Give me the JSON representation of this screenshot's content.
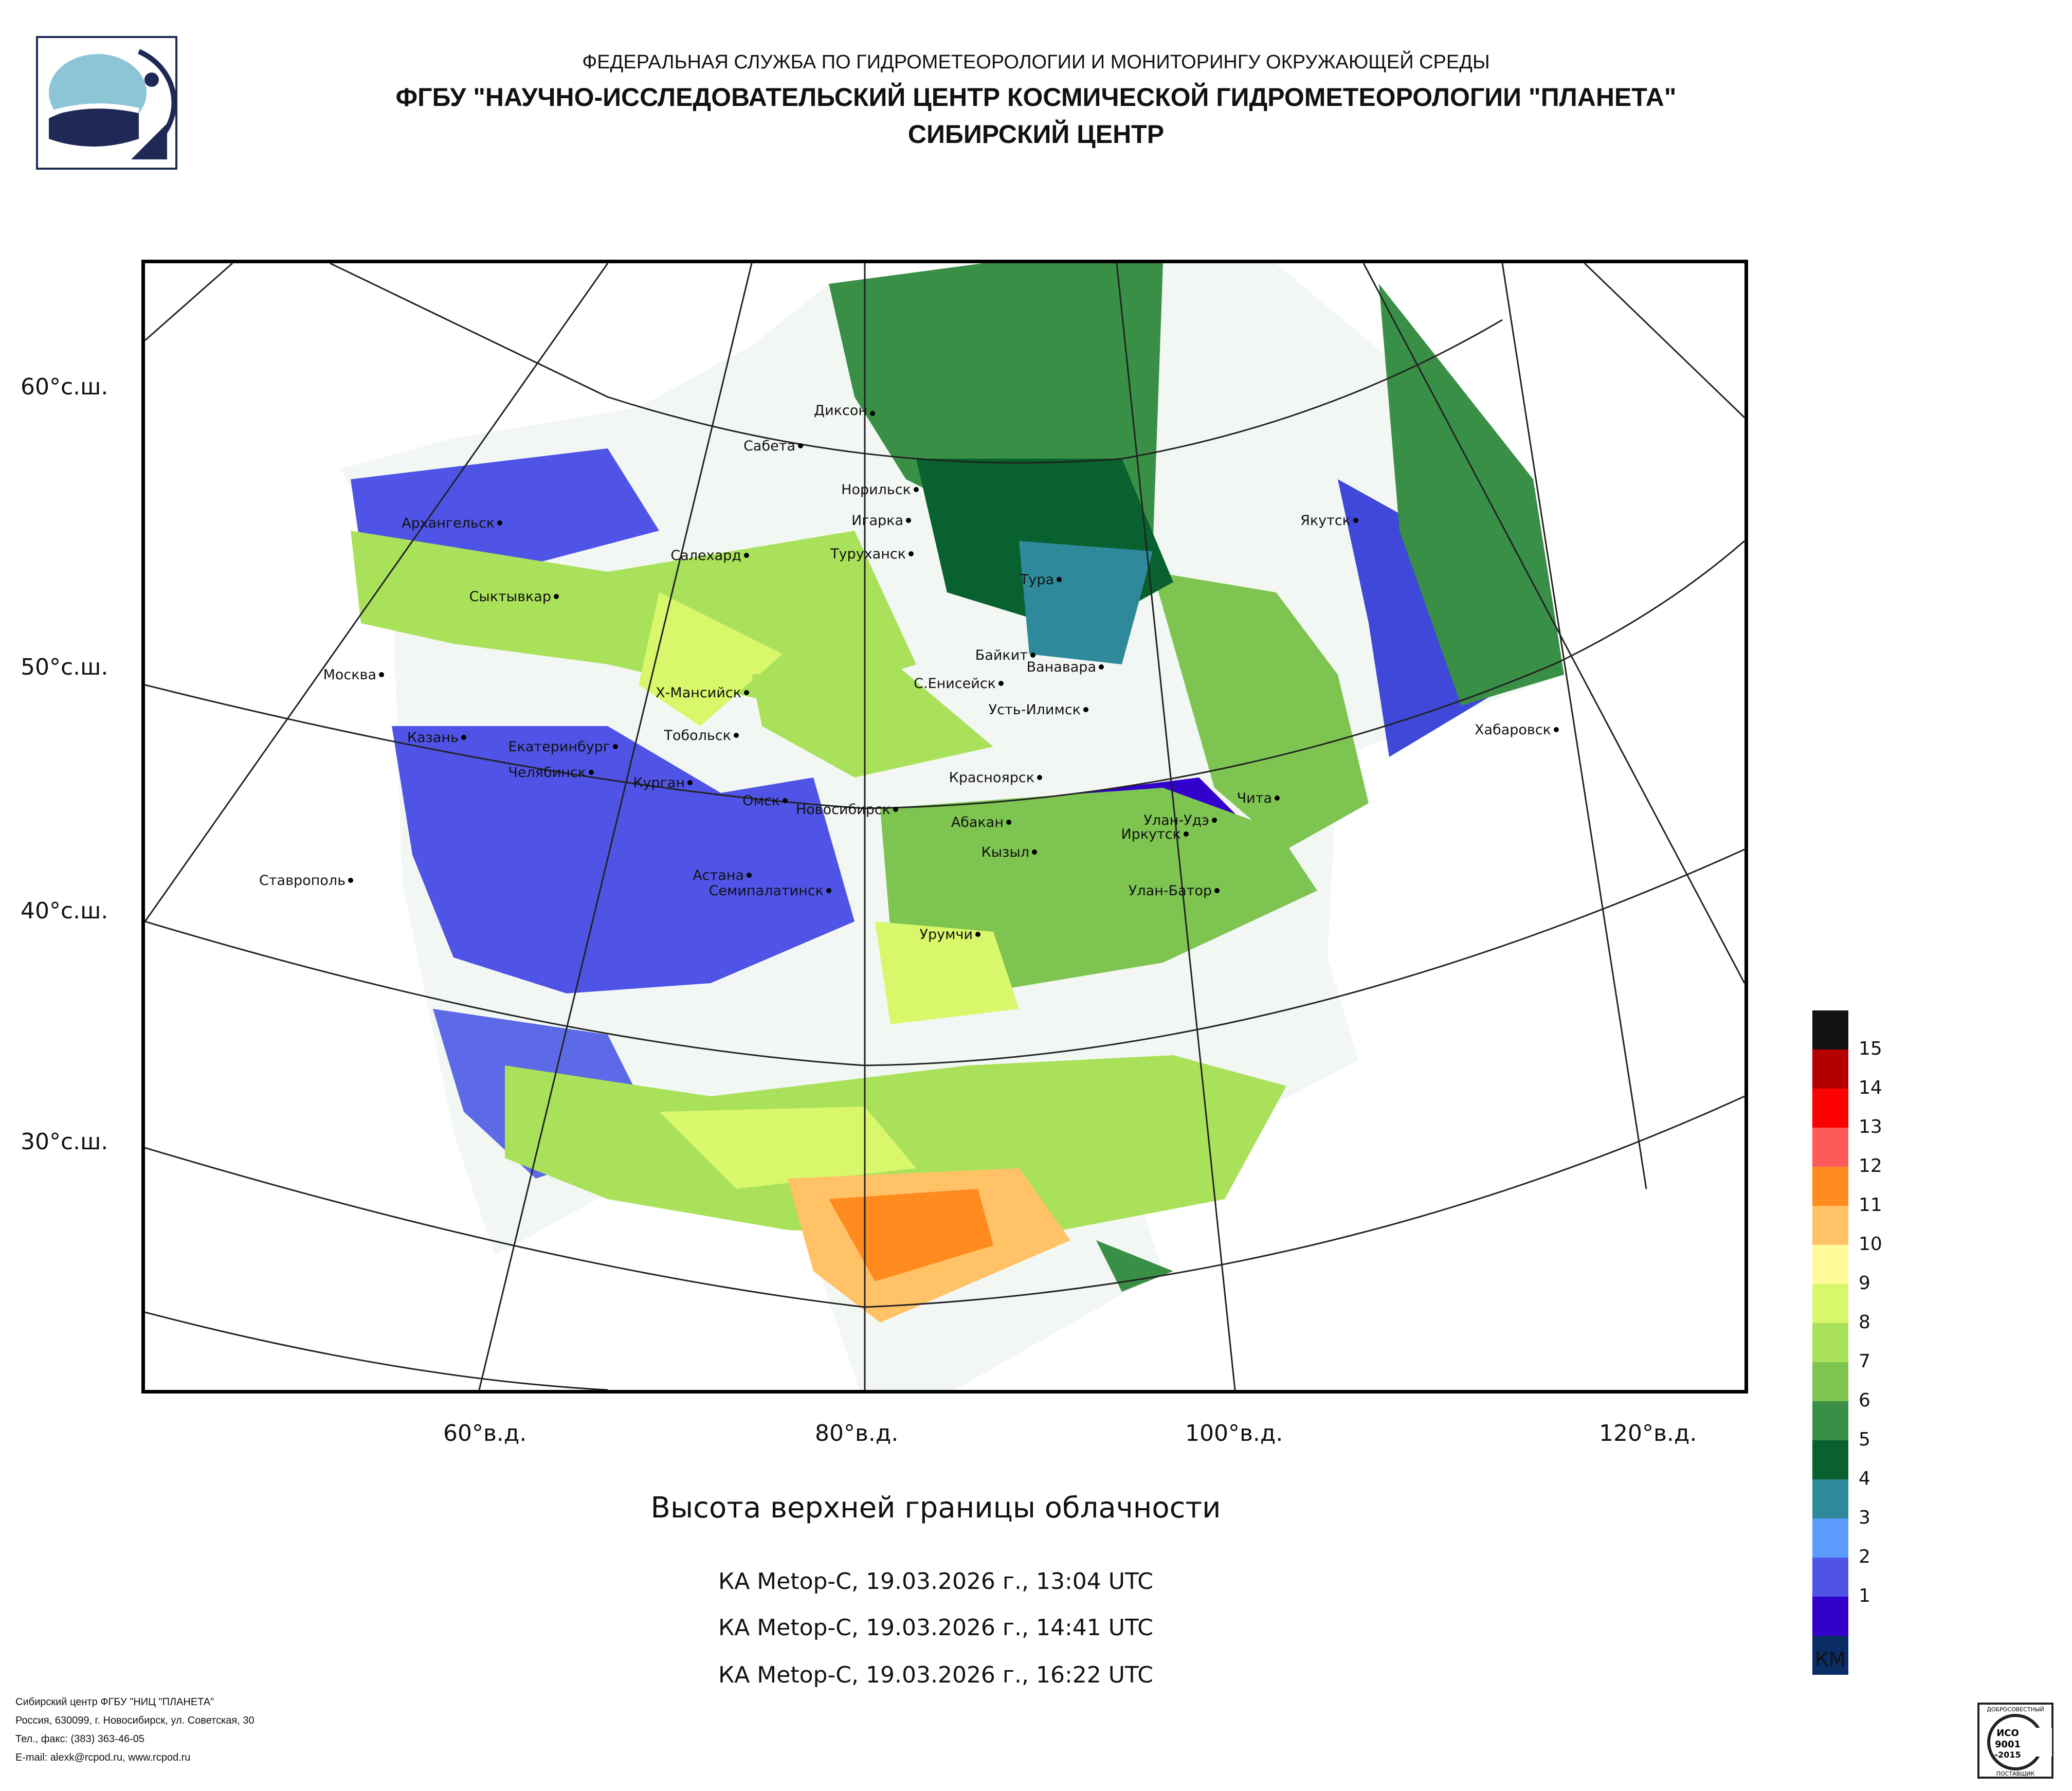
{
  "header": {
    "line1": "ФЕДЕРАЛЬНАЯ СЛУЖБА ПО ГИДРОМЕТЕОРОЛОГИИ И МОНИТОРИНГУ ОКРУЖАЮЩЕЙ СРЕДЫ",
    "line2": "ФГБУ \"НАУЧНО-ИССЛЕДОВАТЕЛЬСКИЙ ЦЕНТР КОСМИЧЕСКОЙ ГИДРОМЕТЕОРОЛОГИИ \"ПЛАНЕТА\"",
    "line3": "СИБИРСКИЙ ЦЕНТР"
  },
  "map": {
    "latitude_labels": [
      "60°с.ш.",
      "50°с.ш.",
      "40°с.ш.",
      "30°с.ш."
    ],
    "longitude_labels": [
      "60°в.д.",
      "80°в.д.",
      "100°в.д.",
      "120°в.д."
    ],
    "cities": [
      "Диксон",
      "Сабета",
      "Норильск",
      "Игарка",
      "Туруханск",
      "Тура",
      "Якутск",
      "Архангельск",
      "Салехард",
      "Сыктывкар",
      "Москва",
      "Х-Мансийск",
      "Байкит",
      "Ванавара",
      "С.Енисейск",
      "Усть-Илимск",
      "Хабаровск",
      "Казань",
      "Тобольск",
      "Екатеринбург",
      "Челябинск",
      "Курган",
      "Омск",
      "Новосибирск",
      "Красноярск",
      "Чита",
      "Абакан",
      "Улан-Удэ",
      "Иркутск",
      "Кызыл",
      "Ставрополь",
      "Астана",
      "Семипалатинск",
      "Улан-Батор",
      "Урумчи"
    ]
  },
  "product": {
    "title": "Высота верхней границы облачности",
    "passes": [
      "КА Metop-C, 19.03.2026 г., 13:04 UTC",
      "КА Metop-C, 19.03.2026 г., 14:41 UTC",
      "КА Metop-C, 19.03.2026 г., 16:22 UTC"
    ]
  },
  "legend": {
    "unit": "КМ",
    "levels": [
      {
        "label": "15",
        "color": "#121212"
      },
      {
        "label": "14",
        "color": "#b50000"
      },
      {
        "label": "13",
        "color": "#ff0000"
      },
      {
        "label": "12",
        "color": "#ff5a5a"
      },
      {
        "label": "11",
        "color": "#ff8a1e"
      },
      {
        "label": "10",
        "color": "#ffc266"
      },
      {
        "label": "9",
        "color": "#fffa9a"
      },
      {
        "label": "8",
        "color": "#d8f76a"
      },
      {
        "label": "7",
        "color": "#aae15a"
      },
      {
        "label": "6",
        "color": "#7dc451"
      },
      {
        "label": "5",
        "color": "#3a8f46"
      },
      {
        "label": "4",
        "color": "#08612e"
      },
      {
        "label": "3",
        "color": "#2e8a9a"
      },
      {
        "label": "2",
        "color": "#5d9cff"
      },
      {
        "label": "1",
        "color": "#4f54e6"
      },
      {
        "label": "",
        "color": "#3300cc"
      },
      {
        "label": "",
        "color": "#0a2d66"
      }
    ]
  },
  "footer": {
    "line1": "Сибирский центр ФГБУ \"НИЦ \"ПЛАНЕТА\"",
    "line2": "Россия, 630099, г. Новосибирск, ул. Советская, 30",
    "line3": "Тел., факс: (383) 363-46-05",
    "line4": "E-mail: alexk@rcpod.ru, www.rcpod.ru"
  },
  "certificate": {
    "text1": "ДОБРОСОВЕСТНЫЙ",
    "text2": "ИСО",
    "text3": "9001",
    "text4": "-2015",
    "text5": "ПОСТАВЩИК"
  }
}
